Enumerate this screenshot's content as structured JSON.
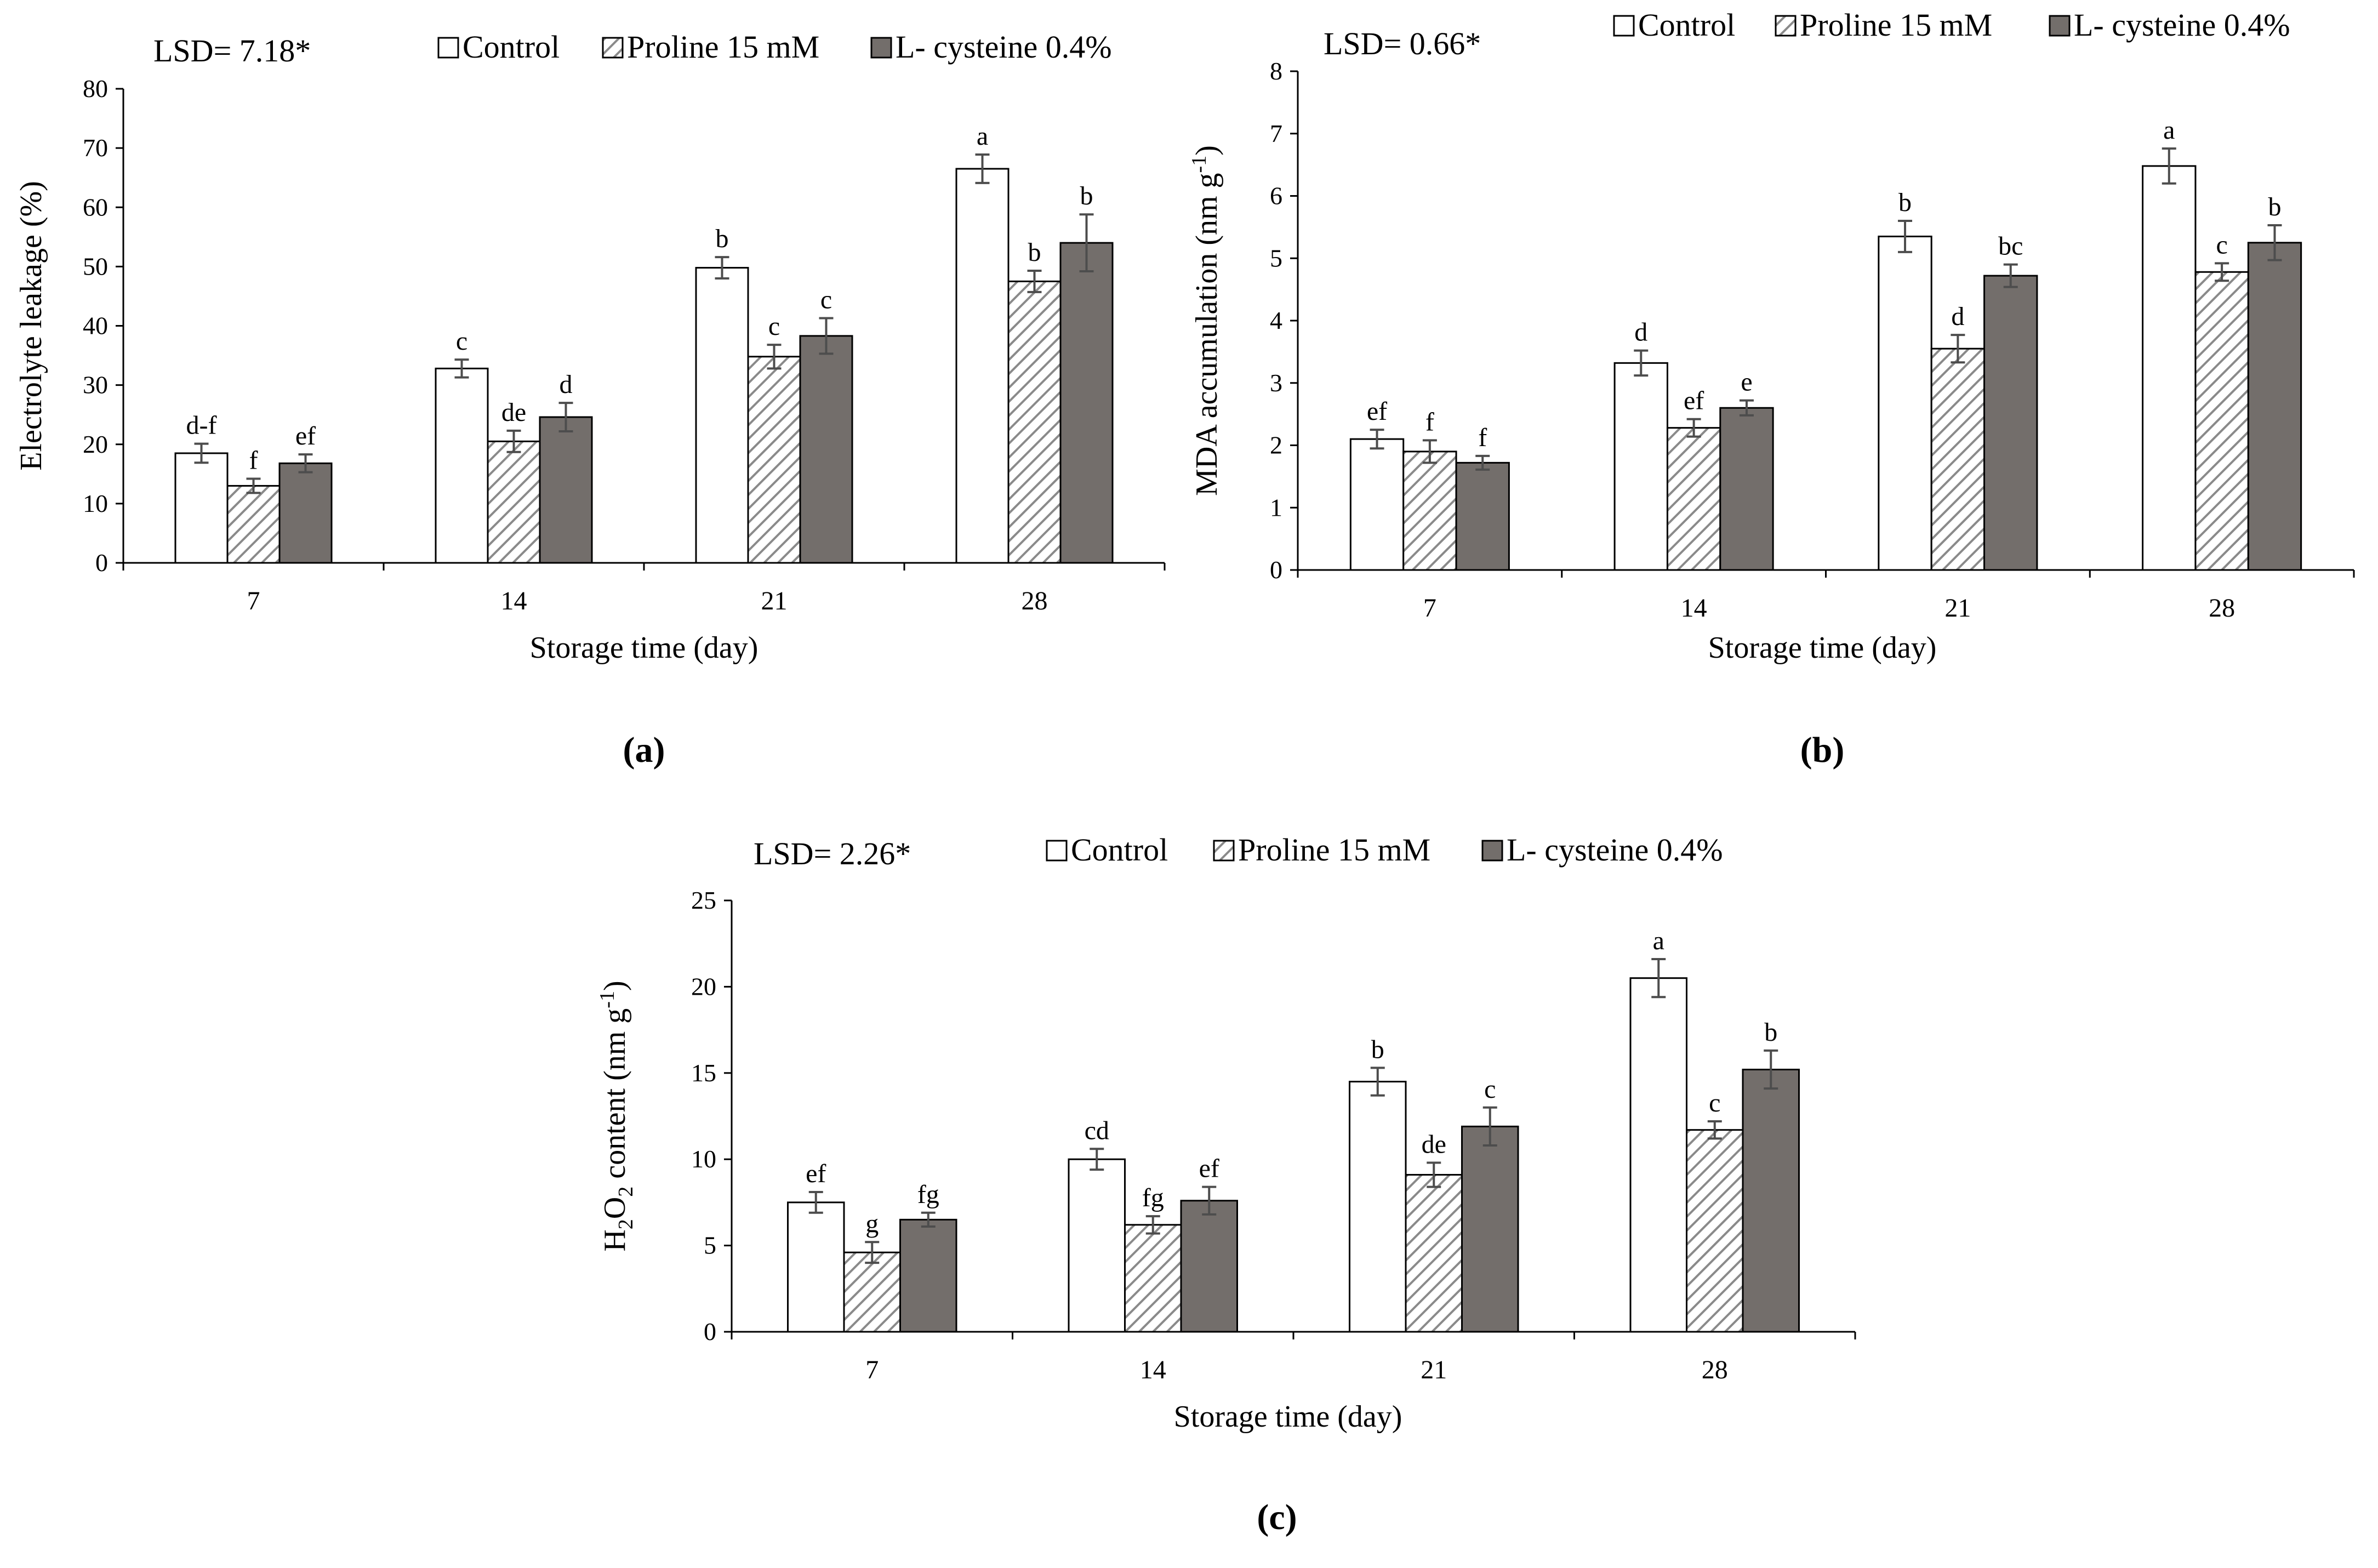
{
  "colors": {
    "control_fill": "#ffffff",
    "proline_fill": "#ffffff",
    "proline_hatch": "#8a8a8a",
    "cysteine_fill": "#736e6b",
    "bar_stroke": "#000000",
    "error_bar": "#4d4d4d",
    "axis": "#000000"
  },
  "chart_data": [
    {
      "type": "bar",
      "panel_label": "(a)",
      "lsd_text": "LSD= 7.18*",
      "xlabel": "Storage time (day)",
      "ylabel": "Electrolyte leakage (%)",
      "ylim": [
        0,
        80
      ],
      "ytick_values": [
        0,
        10,
        20,
        30,
        40,
        50,
        60,
        70,
        80
      ],
      "ytick_labels": [
        "0",
        "10",
        "20",
        "30",
        "40",
        "50",
        "60",
        "70",
        "80"
      ],
      "grid": false,
      "legend_placement": "top",
      "categories": [
        "7",
        "14",
        "21",
        "28"
      ],
      "series": [
        {
          "name": "Control",
          "values": [
            18.5,
            32.8,
            49.8,
            66.5
          ],
          "errors": [
            1.6,
            1.5,
            1.8,
            2.4
          ],
          "letters": [
            "d-f",
            "c",
            "b",
            "a"
          ]
        },
        {
          "name": "Proline 15 mM",
          "values": [
            13,
            20.5,
            34.8,
            47.5
          ],
          "errors": [
            1.2,
            1.8,
            2.0,
            1.8
          ],
          "letters": [
            "f",
            "de",
            "c",
            "b"
          ]
        },
        {
          "name": "L- cysteine 0.4%",
          "values": [
            16.8,
            24.6,
            38.3,
            54
          ],
          "errors": [
            1.5,
            2.4,
            3.0,
            4.8
          ],
          "letters": [
            "ef",
            "d",
            "c",
            "b"
          ]
        }
      ]
    },
    {
      "type": "bar",
      "panel_label": "(b)",
      "lsd_text": "LSD= 0.66*",
      "xlabel": "Storage time (day)",
      "ylabel": "MDA accumulation (nm g",
      "ylabel_sup": "-1",
      "ylabel_end": ")",
      "ylim": [
        0,
        8
      ],
      "ytick_values": [
        0,
        1,
        2,
        3,
        4,
        5,
        6,
        7,
        8
      ],
      "ytick_labels": [
        "0",
        "1",
        "2",
        "3",
        "4",
        "5",
        "6",
        "7",
        "8"
      ],
      "grid": false,
      "legend_placement": "top",
      "categories": [
        "7",
        "14",
        "21",
        "28"
      ],
      "series": [
        {
          "name": "Control",
          "values": [
            2.1,
            3.32,
            5.35,
            6.48
          ],
          "errors": [
            0.15,
            0.2,
            0.25,
            0.28
          ],
          "letters": [
            "ef",
            "d",
            "b",
            "a"
          ]
        },
        {
          "name": "Proline 15 mM",
          "values": [
            1.9,
            2.28,
            3.55,
            4.78
          ],
          "errors": [
            0.18,
            0.14,
            0.22,
            0.14
          ],
          "letters": [
            "f",
            "ef",
            "d",
            "c"
          ]
        },
        {
          "name": "L- cysteine 0.4%",
          "values": [
            1.72,
            2.6,
            4.72,
            5.25
          ],
          "errors": [
            0.11,
            0.12,
            0.18,
            0.28
          ],
          "letters": [
            "f",
            "e",
            "bc",
            "b"
          ]
        }
      ]
    },
    {
      "type": "bar",
      "panel_label": "(c)",
      "lsd_text": "LSD= 2.26*",
      "xlabel": "Storage time (day)",
      "ylabel_parts": [
        "H",
        "2",
        "O",
        "2",
        " content (nm g",
        "-1",
        ")"
      ],
      "ylim": [
        0,
        25
      ],
      "ytick_values": [
        0,
        5,
        10,
        15,
        20,
        25
      ],
      "ytick_labels": [
        "0",
        "5",
        "10",
        "15",
        "20",
        "25"
      ],
      "grid": false,
      "legend_placement": "top",
      "categories": [
        "7",
        "14",
        "21",
        "28"
      ],
      "series": [
        {
          "name": "Control",
          "values": [
            7.5,
            10,
            14.5,
            20.5
          ],
          "errors": [
            0.6,
            0.6,
            0.8,
            1.1
          ],
          "letters": [
            "ef",
            "cd",
            "b",
            "a"
          ]
        },
        {
          "name": "Proline 15 mM",
          "values": [
            4.6,
            6.2,
            9.1,
            11.7
          ],
          "errors": [
            0.6,
            0.5,
            0.7,
            0.5
          ],
          "letters": [
            "g",
            "fg",
            "de",
            "c"
          ]
        },
        {
          "name": "L- cysteine 0.4%",
          "values": [
            6.5,
            7.6,
            11.9,
            15.2
          ],
          "errors": [
            0.4,
            0.8,
            1.1,
            1.1
          ],
          "letters": [
            "fg",
            "ef",
            "c",
            "b"
          ]
        }
      ]
    }
  ]
}
